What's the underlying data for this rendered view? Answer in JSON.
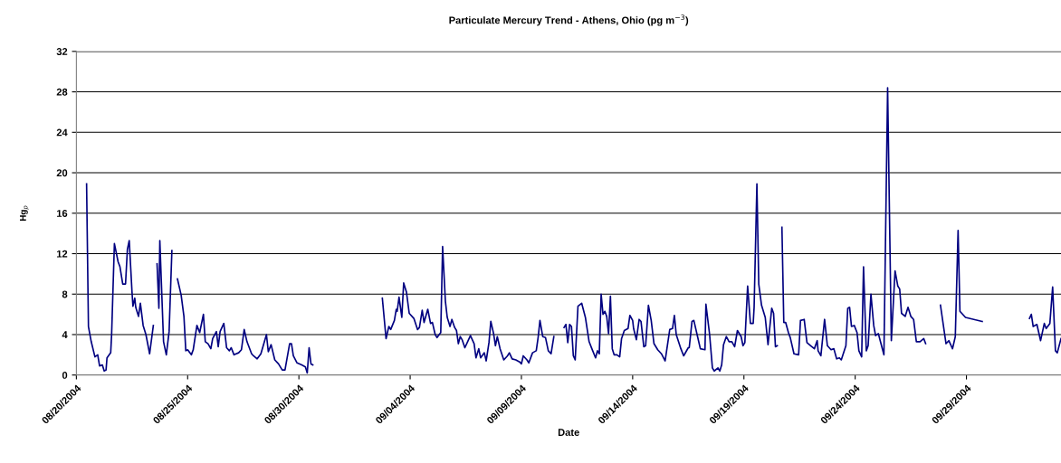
{
  "chart_data": {
    "type": "line",
    "title": "Particulate Mercury Trend - Athens, Ohio (pg m$^{−3}$)",
    "xlabel": "Date",
    "ylabel": "Hg$_{p}$",
    "xlim": [
      "2004-08-20",
      "2004-10-03T06:00"
    ],
    "ylim": [
      0,
      32
    ],
    "yticks": [
      0,
      4,
      8,
      12,
      16,
      20,
      24,
      28,
      32
    ],
    "xticks": [
      {
        "value": "2004-08-20",
        "label": "08/20/2004"
      },
      {
        "value": "2004-08-25",
        "label": "08/25/2004"
      },
      {
        "value": "2004-08-30",
        "label": "08/30/2004"
      },
      {
        "value": "2004-09-04",
        "label": "09/04/2004"
      },
      {
        "value": "2004-09-09",
        "label": "09/09/2004"
      },
      {
        "value": "2004-09-14",
        "label": "09/14/2004"
      },
      {
        "value": "2004-09-19",
        "label": "09/19/2004"
      },
      {
        "value": "2004-09-24",
        "label": "09/24/2004"
      },
      {
        "value": "2004-09-29",
        "label": "09/29/2004"
      }
    ],
    "grid": "y",
    "legend": false,
    "marker": "none",
    "line_style": "solid",
    "series": [
      {
        "color": "#000080",
        "x": [
          "2004-08-20T11:00",
          "2004-08-20T13:00",
          "2004-08-20T16:00",
          "2004-08-20T20:00",
          "2004-08-20T23:00",
          "2004-08-21T01:00",
          "2004-08-21T04:00",
          "2004-08-21T06:00",
          "2004-08-21T08:00",
          "2004-08-21T09:00",
          "2004-08-21T13:00",
          "2004-08-21T14:00",
          "2004-08-21T17:00",
          "2004-08-21T21:00",
          "2004-08-21T23:00",
          "2004-08-22T02:00",
          "2004-08-22T05:00",
          "2004-08-22T07:00",
          "2004-08-22T09:00",
          "2004-08-22T12:00",
          "2004-08-22T13:00",
          "2004-08-22T15:00",
          "2004-08-22T16:00",
          "2004-08-22T19:00",
          "2004-08-22T21:00",
          "2004-08-23T00:00",
          "2004-08-23T03:00",
          "2004-08-23T07:00",
          "2004-08-23T11:00",
          "2004-08-23T13:00",
          "2004-08-23T15:00",
          "2004-08-23T17:00",
          "2004-08-23T18:00",
          "2004-08-23T22:00",
          "2004-08-24T01:00",
          "2004-08-24T04:00",
          "2004-08-24T07:00",
          "2004-08-24T10:00",
          "2004-08-24T13:00",
          "2004-08-24T17:00",
          "2004-08-24T20:00",
          "2004-08-24T22:00",
          "2004-08-25T00:00",
          "2004-08-25T04:00",
          "2004-08-25T06:00",
          "2004-08-25T10:00",
          "2004-08-25T13:00",
          "2004-08-25T17:00",
          "2004-08-25T19:00",
          "2004-08-25T22:00",
          "2004-08-26T01:00",
          "2004-08-26T03:00",
          "2004-08-26T07:00",
          "2004-08-26T09:00",
          "2004-08-26T11:00",
          "2004-08-26T15:00",
          "2004-08-26T18:00",
          "2004-08-26T21:00",
          "2004-08-26T23:00",
          "2004-08-27T02:00",
          "2004-08-27T07:00",
          "2004-08-27T10:00",
          "2004-08-27T13:00",
          "2004-08-27T16:00",
          "2004-08-27T21:00",
          "2004-08-27T23:00",
          "2004-08-28T03:00",
          "2004-08-28T07:00",
          "2004-08-28T13:00",
          "2004-08-28T15:00",
          "2004-08-28T18:00",
          "2004-08-28T22:00",
          "2004-08-29T02:00",
          "2004-08-29T06:00",
          "2004-08-29T09:00",
          "2004-08-29T14:00",
          "2004-08-29T16:00",
          "2004-08-29T18:00",
          "2004-08-29T22:00",
          "2004-08-30T03:00",
          "2004-08-30T07:00",
          "2004-08-30T09:00",
          "2004-08-30T11:00",
          "2004-08-30T13:00",
          "2004-08-30T15:00",
          "2004-09-01T00:00",
          "2004-09-02T18:00",
          "2004-09-02T22:00",
          "2004-09-03T01:00",
          "2004-09-03T03:00",
          "2004-09-03T07:00",
          "2004-09-03T09:00",
          "2004-09-03T10:00",
          "2004-09-03T12:00",
          "2004-09-03T15:00",
          "2004-09-03T17:00",
          "2004-09-03T20:00",
          "2004-09-03T23:00",
          "2004-09-04T04:00",
          "2004-09-04T08:00",
          "2004-09-04T10:00",
          "2004-09-04T13:00",
          "2004-09-04T15:00",
          "2004-09-04T19:00",
          "2004-09-04T22:00",
          "2004-09-05T00:00",
          "2004-09-05T03:00",
          "2004-09-05T05:00",
          "2004-09-05T09:00",
          "2004-09-05T11:00",
          "2004-09-05T14:00",
          "2004-09-05T16:00",
          "2004-09-05T19:00",
          "2004-09-05T21:00",
          "2004-09-06T00:00",
          "2004-09-06T02:00",
          "2004-09-06T04:00",
          "2004-09-06T06:00",
          "2004-09-06T08:00",
          "2004-09-06T11:00",
          "2004-09-06T14:00",
          "2004-09-06T17:00",
          "2004-09-06T21:00",
          "2004-09-06T23:00",
          "2004-09-07T02:00",
          "2004-09-07T04:00",
          "2004-09-07T08:00",
          "2004-09-07T10:00",
          "2004-09-07T13:00",
          "2004-09-07T15:00",
          "2004-09-07T18:00",
          "2004-09-07T20:00",
          "2004-09-07T22:00",
          "2004-09-08T01:00",
          "2004-09-08T05:00",
          "2004-09-08T09:00",
          "2004-09-08T11:00",
          "2004-09-08T14:00",
          "2004-09-08T18:00",
          "2004-09-08T22:00",
          "2004-09-09T00:00",
          "2004-09-09T02:00",
          "2004-09-09T06:00",
          "2004-09-09T08:00",
          "2004-09-09T12:00",
          "2004-09-09T16:00",
          "2004-09-09T18:00",
          "2004-09-09T20:00",
          "2004-09-09T23:00",
          "2004-09-10T02:00",
          "2004-09-10T05:00",
          "2004-09-10T08:00",
          "2004-09-10T11:00",
          "2004-09-10T16:00",
          "2004-09-10T22:00",
          "2004-09-11T00:00",
          "2004-09-11T02:00",
          "2004-09-11T04:00",
          "2004-09-11T06:00",
          "2004-09-11T08:00",
          "2004-09-11T10:00",
          "2004-09-11T13:00",
          "2004-09-11T17:00",
          "2004-09-11T21:00",
          "2004-09-12T01:00",
          "2004-09-12T04:00",
          "2004-09-12T08:00",
          "2004-09-12T10:00",
          "2004-09-12T12:00",
          "2004-09-12T14:00",
          "2004-09-12T16:00",
          "2004-09-12T18:00",
          "2004-09-12T20:00",
          "2004-09-12T22:00",
          "2004-09-13T00:00",
          "2004-09-13T02:00",
          "2004-09-13T04:00",
          "2004-09-13T07:00",
          "2004-09-13T10:00",
          "2004-09-13T12:00",
          "2004-09-13T15:00",
          "2004-09-13T19:00",
          "2004-09-13T21:00",
          "2004-09-14T00:00",
          "2004-09-14T01:00",
          "2004-09-14T04:00",
          "2004-09-14T07:00",
          "2004-09-14T09:00",
          "2004-09-14T12:00",
          "2004-09-14T14:00",
          "2004-09-14T17:00",
          "2004-09-14T20:00",
          "2004-09-14T23:00",
          "2004-09-15T03:00",
          "2004-09-15T07:00",
          "2004-09-15T11:00",
          "2004-09-15T16:00",
          "2004-09-15T19:00",
          "2004-09-15T21:00",
          "2004-09-15T23:00",
          "2004-09-16T04:00",
          "2004-09-16T07:00",
          "2004-09-16T12:00",
          "2004-09-16T13:00",
          "2004-09-16T16:00",
          "2004-09-16T18:00",
          "2004-09-16T22:00",
          "2004-09-17T01:00",
          "2004-09-17T06:00",
          "2004-09-17T07:00",
          "2004-09-17T11:00",
          "2004-09-17T14:00",
          "2004-09-17T16:00",
          "2004-09-17T20:00",
          "2004-09-17T22:00",
          "2004-09-18T00:00",
          "2004-09-18T02:00",
          "2004-09-18T05:00",
          "2004-09-18T08:00",
          "2004-09-18T11:00",
          "2004-09-18T14:00",
          "2004-09-18T17:00",
          "2004-09-18T21:00",
          "2004-09-18T23:00",
          "2004-09-19T01:00",
          "2004-09-19T04:00",
          "2004-09-19T07:00",
          "2004-09-19T10:00",
          "2004-09-19T11:00",
          "2004-09-19T14:00",
          "2004-09-19T16:00",
          "2004-09-19T19:00",
          "2004-09-19T23:00",
          "2004-09-20T02:00",
          "2004-09-20T06:00",
          "2004-09-20T08:00",
          "2004-09-20T10:00",
          "2004-09-20T12:00",
          "2004-09-20T14:00",
          "2004-09-20T17:00",
          "2004-09-20T19:00",
          "2004-09-20T21:00",
          "2004-09-21T00:00",
          "2004-09-21T02:00",
          "2004-09-21T06:00",
          "2004-09-21T11:00",
          "2004-09-21T13:00",
          "2004-09-21T17:00",
          "2004-09-21T20:00",
          "2004-09-22T00:00",
          "2004-09-22T04:00",
          "2004-09-22T07:00",
          "2004-09-22T08:00",
          "2004-09-22T11:00",
          "2004-09-22T15:00",
          "2004-09-22T18:00",
          "2004-09-22T22:00",
          "2004-09-23T01:00",
          "2004-09-23T04:00",
          "2004-09-23T07:00",
          "2004-09-23T09:00",
          "2004-09-23T14:00",
          "2004-09-23T16:00",
          "2004-09-23T18:00",
          "2004-09-23T20:00",
          "2004-09-23T23:00",
          "2004-09-24T02:00",
          "2004-09-24T04:00",
          "2004-09-24T07:00",
          "2004-09-24T09:00",
          "2004-09-24T12:00",
          "2004-09-24T14:00",
          "2004-09-24T17:00",
          "2004-09-24T20:00",
          "2004-09-24T22:00",
          "2004-09-25T01:00",
          "2004-09-25T03:00",
          "2004-09-25T07:00",
          "2004-09-25T11:00",
          "2004-09-25T15:00",
          "2004-09-25T19:00",
          "2004-09-25T22:00",
          "2004-09-26T00:00",
          "2004-09-26T02:00",
          "2004-09-26T06:00",
          "2004-09-26T09:00",
          "2004-09-26T12:00",
          "2004-09-26T15:00",
          "2004-09-26T18:00",
          "2004-09-26T22:00",
          "2004-09-27T02:00",
          "2004-09-27T04:00",
          "2004-09-27T12:00",
          "2004-09-27T20:00",
          "2004-09-27T23:00",
          "2004-09-28T02:00",
          "2004-09-28T05:00",
          "2004-09-28T09:00",
          "2004-09-28T12:00",
          "2004-09-28T15:00",
          "2004-09-28T17:00",
          "2004-09-28T23:00",
          "2004-09-29T17:00",
          "2004-09-30T00:00",
          "2004-10-01T20:00",
          "2004-10-01T22:00",
          "2004-10-02T00:00",
          "2004-10-02T04:00",
          "2004-10-02T08:00",
          "2004-10-02T12:00",
          "2004-10-02T14:00",
          "2004-10-02T18:00",
          "2004-10-02T21:00",
          "2004-10-03T00:00",
          "2004-10-03T02:00",
          "2004-10-03T06:00"
        ],
        "values": [
          18.9,
          4.8,
          3.3,
          1.8,
          2.0,
          0.9,
          1.0,
          0.4,
          0.5,
          1.7,
          2.2,
          4.0,
          13.0,
          11.2,
          10.7,
          9.0,
          9.0,
          12.4,
          13.3,
          8.2,
          6.8,
          7.6,
          6.7,
          5.8,
          7.1,
          4.9,
          4.0,
          2.1,
          4.9,
          null,
          11.0,
          6.6,
          13.3,
          3.3,
          2.0,
          4.3,
          12.3,
          null,
          9.5,
          7.9,
          5.8,
          2.4,
          2.5,
          2.0,
          2.5,
          4.9,
          4.2,
          6.0,
          3.3,
          3.1,
          2.6,
          3.6,
          4.3,
          2.8,
          4.3,
          5.1,
          2.7,
          2.4,
          2.7,
          2.0,
          2.2,
          2.5,
          4.5,
          3.3,
          2.1,
          1.9,
          1.6,
          2.1,
          4.0,
          2.3,
          3.0,
          1.5,
          1.1,
          0.5,
          0.5,
          3.1,
          3.1,
          1.9,
          1.2,
          1.0,
          0.8,
          0.2,
          2.7,
          1.1,
          1.0,
          null,
          7.6,
          3.6,
          4.8,
          4.5,
          5.4,
          6.5,
          6.3,
          7.7,
          5.7,
          9.1,
          8.2,
          6.1,
          5.6,
          4.5,
          4.7,
          6.4,
          5.2,
          6.5,
          5.1,
          5.2,
          4.0,
          3.7,
          4.2,
          12.7,
          7.3,
          5.7,
          4.8,
          5.5,
          4.7,
          4.4,
          3.1,
          3.8,
          3.5,
          2.7,
          3.3,
          3.9,
          3.1,
          1.7,
          2.6,
          1.7,
          2.2,
          1.4,
          3.2,
          5.3,
          4.1,
          2.9,
          3.8,
          2.6,
          1.5,
          1.9,
          2.2,
          1.6,
          1.5,
          1.3,
          1.1,
          1.9,
          1.5,
          1.2,
          2.2,
          2.4,
          3.7,
          5.4,
          3.8,
          3.7,
          2.4,
          2.1,
          3.8,
          null,
          4.7,
          5.0,
          3.2,
          5.0,
          4.8,
          1.9,
          1.5,
          6.8,
          7.1,
          5.7,
          3.3,
          2.6,
          1.7,
          2.4,
          2.1,
          8.0,
          6.0,
          6.3,
          5.8,
          4.1,
          7.8,
          2.6,
          2.0,
          2.0,
          1.8,
          3.6,
          4.4,
          4.6,
          5.9,
          5.4,
          4.6,
          3.5,
          5.5,
          5.3,
          2.8,
          2.9,
          6.9,
          5.4,
          3.1,
          2.5,
          2.1,
          1.4,
          4.5,
          4.6,
          5.9,
          4.0,
          2.6,
          1.9,
          2.7,
          2.7,
          5.3,
          5.4,
          3.8,
          2.6,
          2.5,
          7.0,
          4.0,
          0.7,
          0.4,
          0.7,
          0.4,
          1.0,
          3.0,
          3.8,
          3.3,
          3.3,
          2.8,
          4.4,
          3.8,
          2.9,
          3.2,
          8.8,
          5.1,
          5.1,
          6.7,
          18.9,
          9.0,
          6.9,
          5.7,
          3.0,
          6.6,
          6.1,
          2.8,
          2.9,
          null,
          14.6,
          5.2,
          5.2,
          4.2,
          3.7,
          2.1,
          2.0,
          5.4,
          5.5,
          3.2,
          2.9,
          2.6,
          3.4,
          2.4,
          1.9,
          5.5,
          2.9,
          2.5,
          2.6,
          1.6,
          1.7,
          1.5,
          2.9,
          6.6,
          6.7,
          4.8,
          4.9,
          4.2,
          2.4,
          1.8,
          10.7,
          2.4,
          2.9,
          8.0,
          4.9,
          3.9,
          4.1,
          3.4,
          2.0,
          28.4,
          3.4,
          10.3,
          8.8,
          8.5,
          6.1,
          5.8,
          6.7,
          5.8,
          5.5,
          3.3,
          3.3,
          3.6,
          3.1,
          null,
          6.9,
          5.0,
          3.1,
          3.4,
          2.6,
          3.8,
          14.3,
          6.3,
          5.7,
          5.3,
          null,
          5.6,
          6.0,
          4.8,
          5.0,
          3.4,
          5.1,
          4.6,
          5.1,
          8.7,
          2.4,
          2.2,
          3.6
        ]
      }
    ]
  }
}
